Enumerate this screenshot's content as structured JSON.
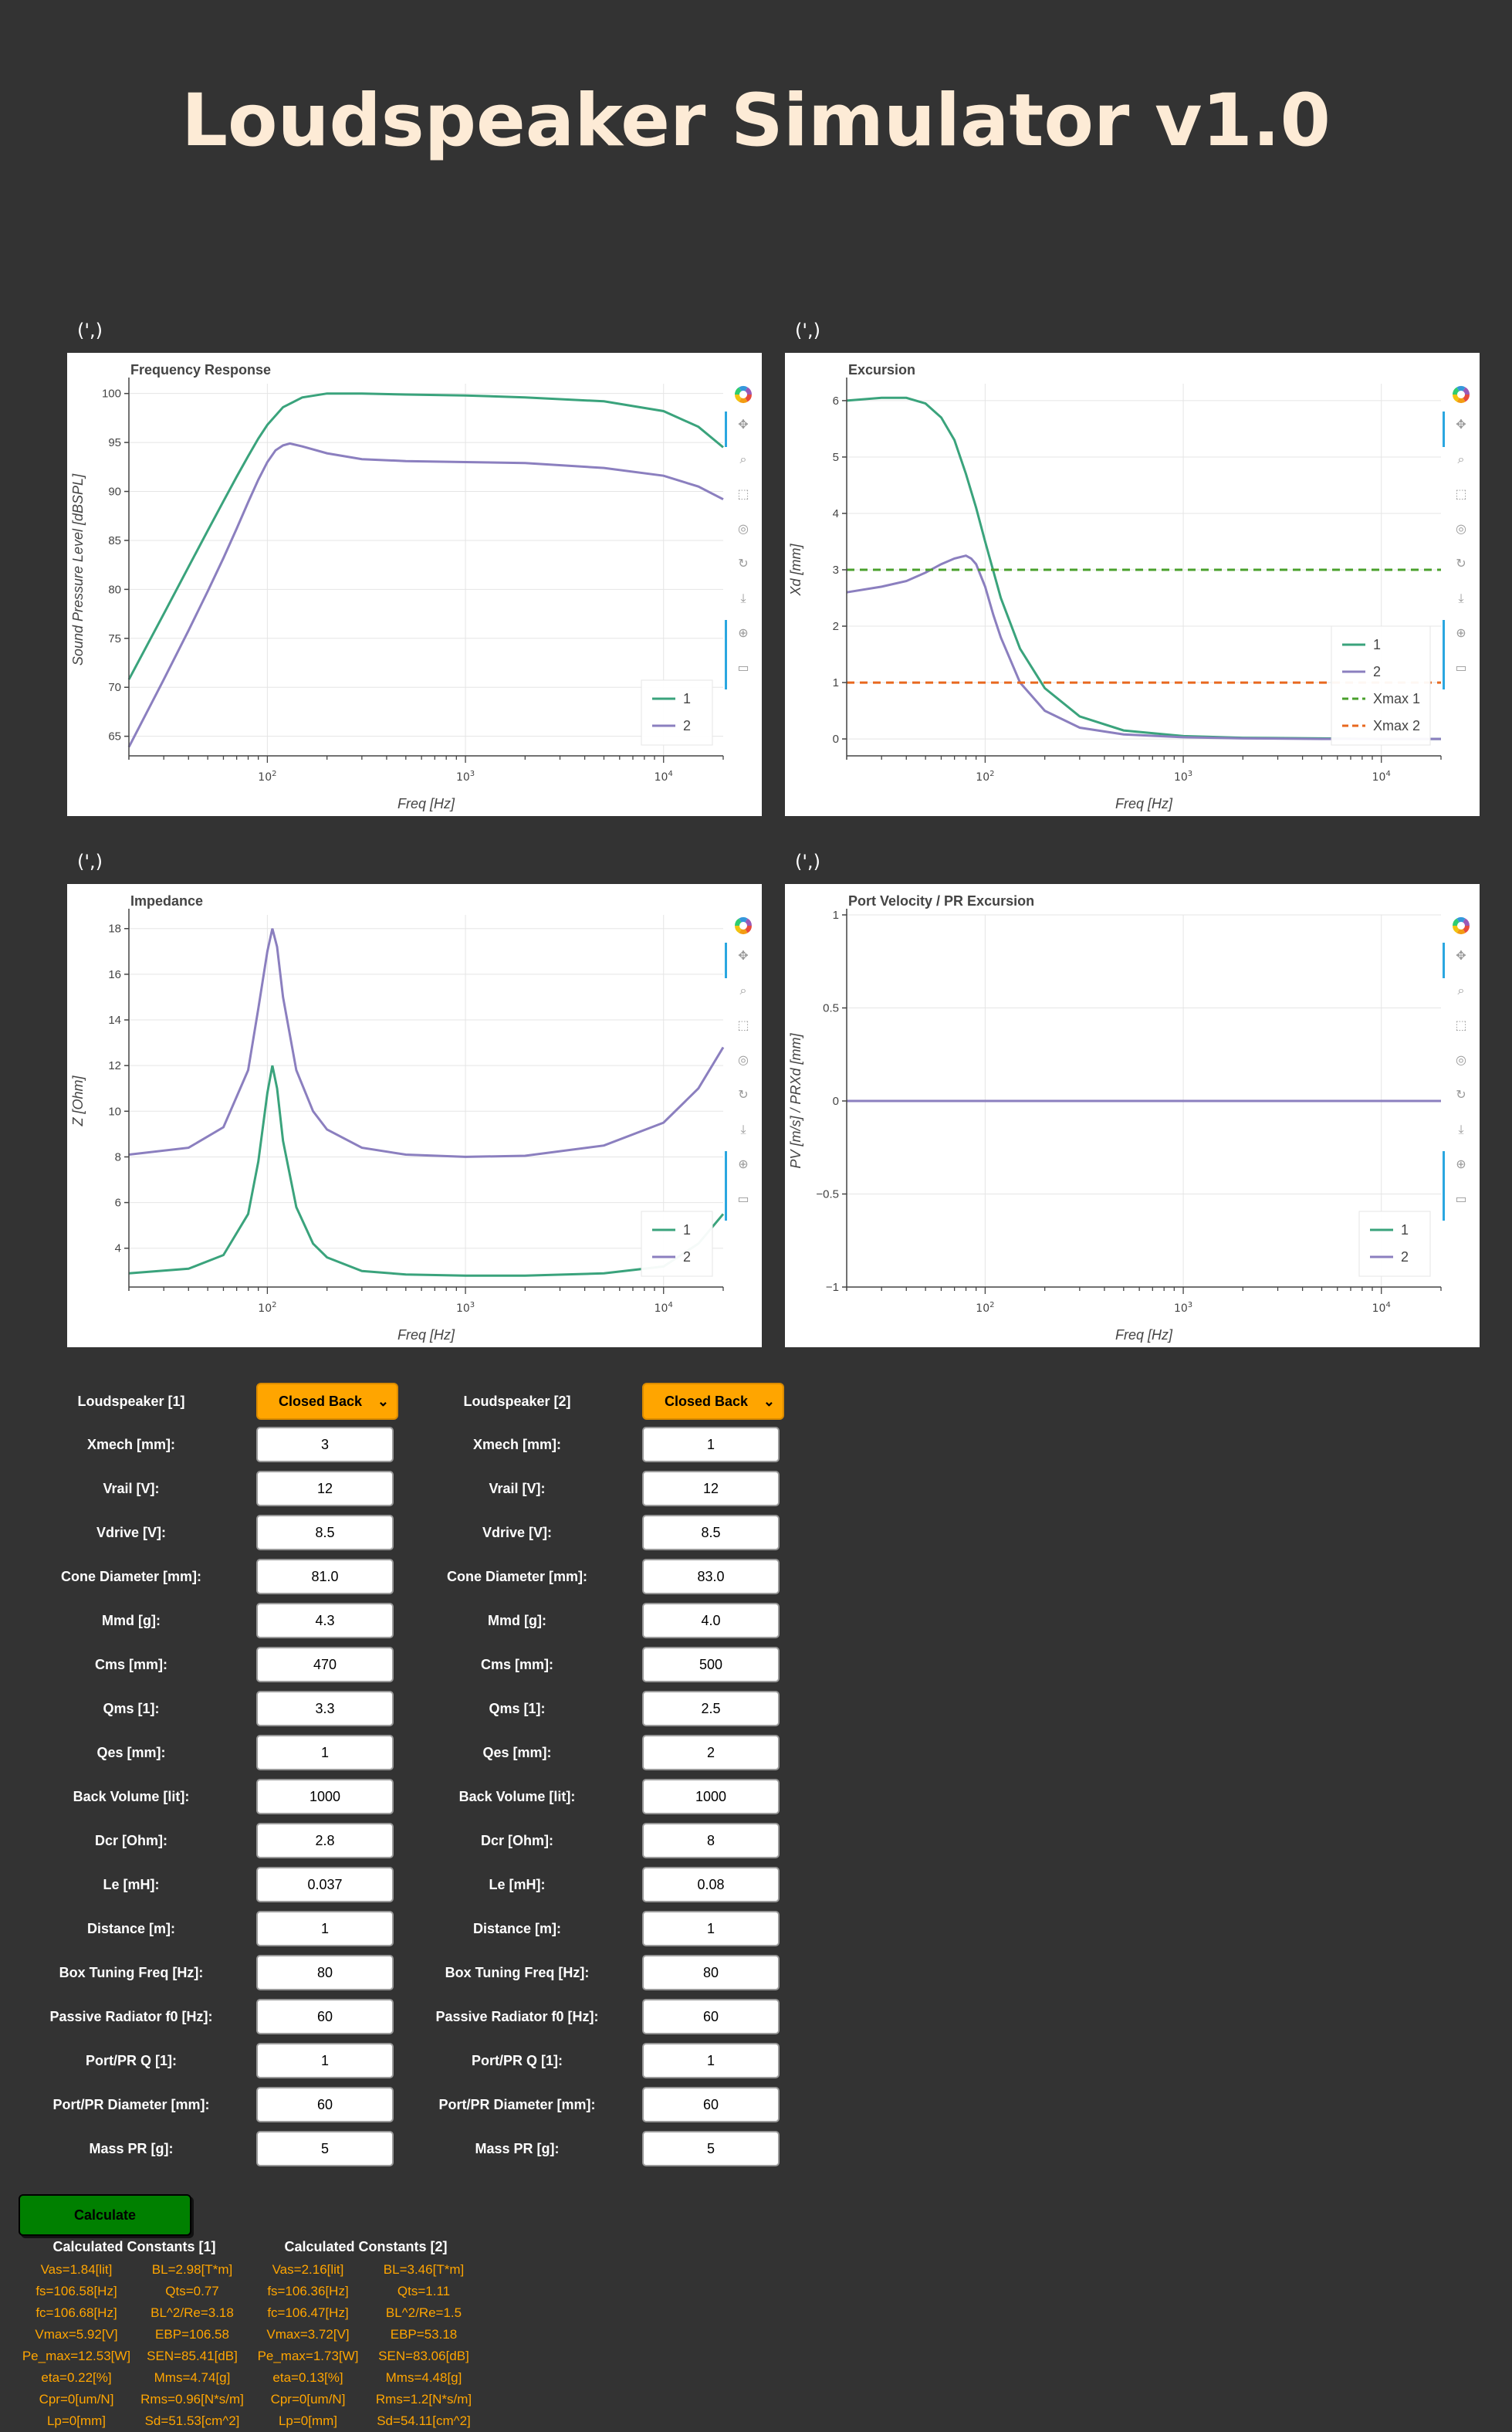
{
  "title": "Loudspeaker Simulator v1.0",
  "plot_caption": "(',)",
  "charts": [
    {
      "type": "line",
      "title": "Frequency Response",
      "xlabel": "Freq [Hz]",
      "ylabel": "Sound Pressure Level [dBSPL]",
      "xscale": "log",
      "xlim": [
        20,
        20000
      ],
      "ylim": [
        63,
        101
      ],
      "x_tick_labels": [
        "10^2",
        "10^3",
        "10^4"
      ],
      "y_ticks": [
        65,
        70,
        75,
        80,
        85,
        90,
        95,
        100
      ],
      "legend": "bottom-right",
      "series": [
        {
          "name": "1",
          "color": "#3aa37c",
          "x": [
            20,
            30,
            40,
            50,
            60,
            70,
            80,
            90,
            100,
            120,
            150,
            200,
            300,
            500,
            1000,
            2000,
            5000,
            10000,
            15000,
            20000
          ],
          "y": [
            70.8,
            77.5,
            82.3,
            86.0,
            89.0,
            91.5,
            93.6,
            95.4,
            96.8,
            98.6,
            99.6,
            100.0,
            100.0,
            99.9,
            99.8,
            99.6,
            99.2,
            98.2,
            96.6,
            94.5
          ]
        },
        {
          "name": "2",
          "color": "#8b7fbf",
          "x": [
            20,
            30,
            40,
            50,
            60,
            70,
            80,
            90,
            100,
            110,
            120,
            130,
            150,
            200,
            300,
            500,
            1000,
            2000,
            5000,
            10000,
            15000,
            20000
          ],
          "y": [
            63.9,
            70.8,
            75.8,
            79.8,
            83.2,
            86.2,
            88.9,
            91.2,
            93.0,
            94.2,
            94.7,
            94.9,
            94.6,
            93.9,
            93.3,
            93.1,
            93.0,
            92.9,
            92.4,
            91.6,
            90.5,
            89.2
          ]
        }
      ]
    },
    {
      "type": "line",
      "title": "Excursion",
      "xlabel": "Freq [Hz]",
      "ylabel": "Xd [mm]",
      "xscale": "log",
      "xlim": [
        20,
        20000
      ],
      "ylim": [
        -0.3,
        6.3
      ],
      "x_tick_labels": [
        "10^2",
        "10^3",
        "10^4"
      ],
      "y_ticks": [
        0,
        1,
        2,
        3,
        4,
        5,
        6
      ],
      "legend": "bottom-right",
      "series": [
        {
          "name": "1",
          "color": "#3aa37c",
          "x": [
            20,
            30,
            40,
            50,
            60,
            70,
            80,
            90,
            100,
            120,
            150,
            200,
            300,
            500,
            1000,
            2000,
            5000,
            10000,
            20000
          ],
          "y": [
            6.0,
            6.05,
            6.05,
            5.95,
            5.7,
            5.3,
            4.7,
            4.1,
            3.5,
            2.5,
            1.6,
            0.9,
            0.4,
            0.15,
            0.05,
            0.02,
            0.01,
            0.0,
            0.0
          ]
        },
        {
          "name": "2",
          "color": "#8b7fbf",
          "x": [
            20,
            30,
            40,
            50,
            60,
            70,
            80,
            85,
            90,
            100,
            110,
            120,
            150,
            200,
            300,
            500,
            1000,
            2000,
            5000,
            10000,
            20000
          ],
          "y": [
            2.6,
            2.7,
            2.8,
            2.95,
            3.1,
            3.2,
            3.25,
            3.2,
            3.1,
            2.7,
            2.2,
            1.8,
            1.0,
            0.5,
            0.2,
            0.08,
            0.03,
            0.01,
            0.0,
            0.0,
            0.0
          ]
        },
        {
          "name": "Xmax 1",
          "color": "#4aa02c",
          "dash": true,
          "x": [
            20,
            20000
          ],
          "y": [
            3,
            3
          ]
        },
        {
          "name": "Xmax 2",
          "color": "#e8681f",
          "dash": true,
          "x": [
            20,
            20000
          ],
          "y": [
            1,
            1
          ]
        }
      ]
    },
    {
      "type": "line",
      "title": "Impedance",
      "xlabel": "Freq [Hz]",
      "ylabel": "Z [Ohm]",
      "xscale": "log",
      "xlim": [
        20,
        20000
      ],
      "ylim": [
        2.3,
        18.6
      ],
      "x_tick_labels": [
        "10^2",
        "10^3",
        "10^4"
      ],
      "y_ticks": [
        4,
        6,
        8,
        10,
        12,
        14,
        16,
        18
      ],
      "legend": "bottom-right",
      "series": [
        {
          "name": "1",
          "color": "#3aa37c",
          "x": [
            20,
            40,
            60,
            80,
            90,
            100,
            106,
            112,
            120,
            140,
            170,
            200,
            300,
            500,
            1000,
            2000,
            5000,
            10000,
            15000,
            20000
          ],
          "y": [
            2.9,
            3.1,
            3.7,
            5.5,
            7.8,
            10.8,
            12.0,
            11.0,
            8.7,
            5.8,
            4.2,
            3.6,
            3.0,
            2.85,
            2.8,
            2.8,
            2.9,
            3.2,
            4.2,
            5.5
          ]
        },
        {
          "name": "2",
          "color": "#8b7fbf",
          "x": [
            20,
            40,
            60,
            80,
            90,
            100,
            106,
            112,
            120,
            140,
            170,
            200,
            300,
            500,
            1000,
            2000,
            5000,
            10000,
            15000,
            20000
          ],
          "y": [
            8.1,
            8.4,
            9.3,
            11.8,
            14.5,
            17.0,
            18.0,
            17.2,
            15.0,
            11.8,
            10.0,
            9.2,
            8.4,
            8.1,
            8.0,
            8.05,
            8.5,
            9.5,
            11.0,
            12.8
          ]
        }
      ]
    },
    {
      "type": "line",
      "title": "Port Velocity / PR Excursion",
      "xlabel": "Freq [Hz]",
      "ylabel": "PV [m/s] / PRXd [mm]",
      "xscale": "log",
      "xlim": [
        20,
        20000
      ],
      "ylim": [
        -1,
        1
      ],
      "x_tick_labels": [
        "10^2",
        "10^3",
        "10^4"
      ],
      "y_ticks": [
        -1,
        -0.5,
        0,
        0.5,
        1
      ],
      "y_tick_labels": [
        "−1",
        "−0.5",
        "0",
        "0.5",
        "1"
      ],
      "legend": "bottom-right",
      "series": [
        {
          "name": "1",
          "color": "#3aa37c",
          "x": [
            20,
            20000
          ],
          "y": [
            0,
            0
          ]
        },
        {
          "name": "2",
          "color": "#8b7fbf",
          "x": [
            20,
            20000
          ],
          "y": [
            0,
            0
          ]
        }
      ]
    }
  ],
  "form": {
    "left_title": "Loudspeaker [1]",
    "right_title": "Loudspeaker [2]",
    "select_1": "Closed Back",
    "select_2": "Closed Back",
    "labels_1": [
      "Xmech [mm]:",
      "Vrail [V]:",
      "Vdrive [V]:",
      "Cone Diameter [mm]:",
      "Mmd [g]:",
      "Cms [mm]:",
      "Qms [1]:",
      "Qes [mm]:",
      "Back Volume [lit]:",
      "Dcr [Ohm]:",
      "Le [mH]:",
      "Distance [m]:",
      "Box Tuning Freq [Hz]:",
      "Passive Radiator f0 [Hz]:",
      "Port/PR Q [1]:",
      "Port/PR Diameter [mm]:",
      "Mass PR [g]:"
    ],
    "labels_2": [
      "Xmech [mm]:",
      "Vrail [V]:",
      "Vdrive [V]:",
      "Cone Diameter [mm]:",
      "Mmd [g]:",
      "Cms [mm]:",
      "Qms [1]:",
      "Qes [mm]:",
      "Back Volume [lit]:",
      "Dcr [Ohm]:",
      "Le [mH]:",
      "Distance [m]:",
      "Box Tuning Freq [Hz]:",
      "Passive Radiator f0 [Hz]:",
      "Port/PR Q [1]:",
      "Port/PR Diameter [mm]:",
      "Mass PR [g]:"
    ],
    "values_1": [
      "3",
      "12",
      "8.5",
      "81.0",
      "4.3",
      "470",
      "3.3",
      "1",
      "1000",
      "2.8",
      "0.037",
      "1",
      "80",
      "60",
      "1",
      "60",
      "5"
    ],
    "values_2": [
      "1",
      "12",
      "8.5",
      "83.0",
      "4.0",
      "500",
      "2.5",
      "2",
      "1000",
      "8",
      "0.08",
      "1",
      "80",
      "60",
      "1",
      "60",
      "5"
    ]
  },
  "calculate_label": "Calculate",
  "constants": {
    "title_1": "Calculated Constants [1]",
    "title_2": "Calculated Constants [2]",
    "col1_a": [
      "Vas=1.84[lit]",
      "fs=106.58[Hz]",
      "fc=106.68[Hz]",
      "Vmax=5.92[V]",
      "Pe_max=12.53[W]",
      "eta=0.22[%]",
      "Cpr=0[um/N]",
      "Lp=0[mm]"
    ],
    "col1_b": [
      "BL=2.98[T*m]",
      "Qts=0.77",
      "BL^2/Re=3.18",
      "EBP=106.58",
      "SEN=85.41[dB]",
      "Mms=4.74[g]",
      "Rms=0.96[N*s/m]",
      "Sd=51.53[cm^2]"
    ],
    "col2_a": [
      "Vas=2.16[lit]",
      "fs=106.36[Hz]",
      "fc=106.47[Hz]",
      "Vmax=3.72[V]",
      "Pe_max=1.73[W]",
      "eta=0.13[%]",
      "Cpr=0[um/N]",
      "Lp=0[mm]"
    ],
    "col2_b": [
      "BL=3.46[T*m]",
      "Qts=1.11",
      "BL^2/Re=1.5",
      "EBP=53.18",
      "SEN=83.06[dB]",
      "Mms=4.48[g]",
      "Rms=1.2[N*s/m]",
      "Sd=54.11[cm^2]"
    ]
  }
}
